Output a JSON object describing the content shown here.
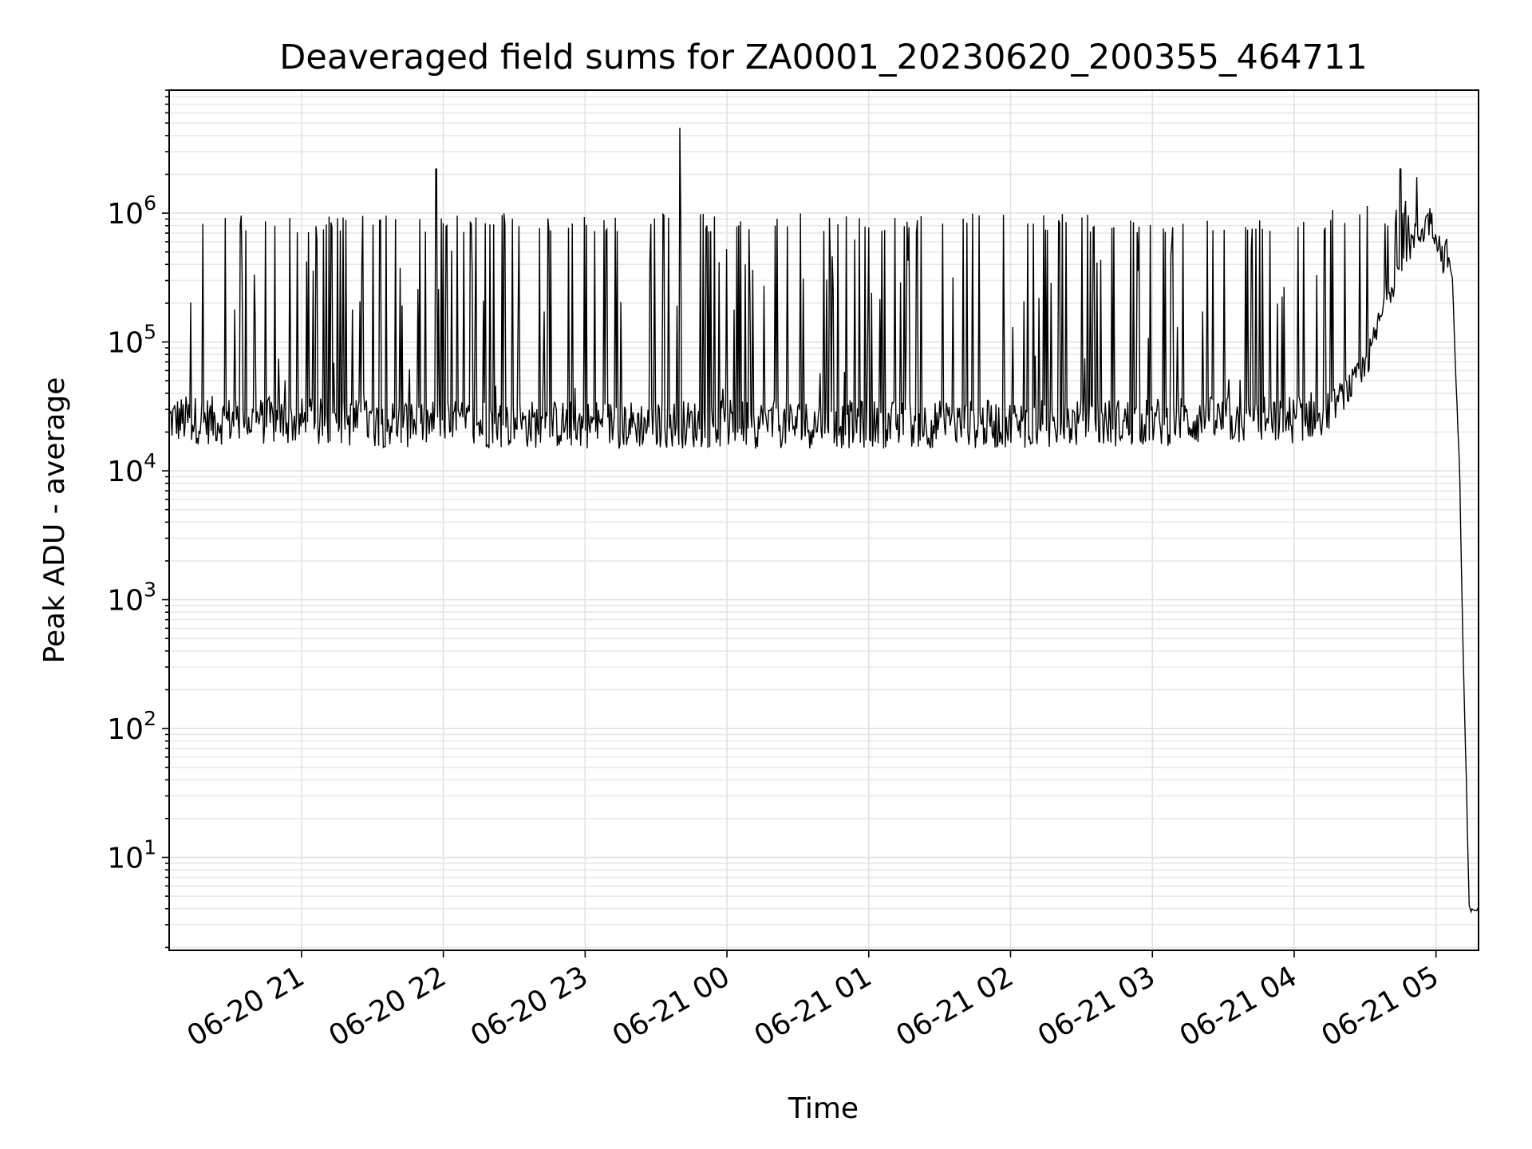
{
  "chart_data": {
    "type": "line",
    "title": "Deaveraged field sums for ZA0001_20230620_200355_464711",
    "xlabel": "Time",
    "ylabel": "Peak ADU - average",
    "y_scale": "log",
    "ylim": [
      1.9,
      9000000
    ],
    "xlim": [
      "2023-06-20 20:04",
      "2023-06-21 05:18"
    ],
    "grid": true,
    "line_color": "#000000",
    "x_ticks": [
      {
        "value": "2023-06-20 21:00",
        "label": "06-20 21"
      },
      {
        "value": "2023-06-20 22:00",
        "label": "06-20 22"
      },
      {
        "value": "2023-06-20 23:00",
        "label": "06-20 23"
      },
      {
        "value": "2023-06-21 00:00",
        "label": "06-21 00"
      },
      {
        "value": "2023-06-21 01:00",
        "label": "06-21 01"
      },
      {
        "value": "2023-06-21 02:00",
        "label": "06-21 02"
      },
      {
        "value": "2023-06-21 03:00",
        "label": "06-21 03"
      },
      {
        "value": "2023-06-21 04:00",
        "label": "06-21 04"
      },
      {
        "value": "2023-06-21 05:00",
        "label": "06-21 05"
      }
    ],
    "y_ticks": [
      {
        "value": 10,
        "base": "10",
        "exp": "1"
      },
      {
        "value": 100,
        "base": "10",
        "exp": "2"
      },
      {
        "value": 1000,
        "base": "10",
        "exp": "3"
      },
      {
        "value": 10000,
        "base": "10",
        "exp": "4"
      },
      {
        "value": 100000,
        "base": "10",
        "exp": "5"
      },
      {
        "value": 1000000,
        "base": "10",
        "exp": "6"
      }
    ],
    "series": [
      {
        "baseline_points": [
          {
            "x": "2023-06-20 20:04",
            "y": 25000
          },
          {
            "x": "2023-06-20 22:00",
            "y": 23000
          },
          {
            "x": "2023-06-21 00:00",
            "y": 23000
          },
          {
            "x": "2023-06-21 02:00",
            "y": 23000
          },
          {
            "x": "2023-06-21 04:00",
            "y": 25000
          },
          {
            "x": "2023-06-21 04:15",
            "y": 30000
          },
          {
            "x": "2023-06-21 04:30",
            "y": 60000
          },
          {
            "x": "2023-06-21 04:40",
            "y": 250000
          },
          {
            "x": "2023-06-21 04:50",
            "y": 600000
          },
          {
            "x": "2023-06-21 04:58",
            "y": 900000
          },
          {
            "x": "2023-06-21 05:03",
            "y": 450000
          },
          {
            "x": "2023-06-21 05:05",
            "y": 500000
          },
          {
            "x": "2023-06-21 05:07",
            "y": 300000
          },
          {
            "x": "2023-06-21 05:08",
            "y": 80000
          },
          {
            "x": "2023-06-21 05:10",
            "y": 10000
          },
          {
            "x": "2023-06-21 05:11",
            "y": 1000
          },
          {
            "x": "2023-06-21 05:12",
            "y": 150
          },
          {
            "x": "2023-06-21 05:13",
            "y": 30
          },
          {
            "x": "2023-06-21 05:14",
            "y": 4
          },
          {
            "x": "2023-06-21 05:18",
            "y": 4
          }
        ],
        "peaks": [
          {
            "x": "2023-06-20 21:57",
            "y": 2200000
          },
          {
            "x": "2023-06-20 23:40",
            "y": 4600000
          },
          {
            "x": "2023-06-21 04:45",
            "y": 2200000
          },
          {
            "x": "2023-06-21 04:52",
            "y": 1900000
          }
        ],
        "typical_spike_max": 1000000,
        "noise_floor_min": 13000
      }
    ]
  }
}
